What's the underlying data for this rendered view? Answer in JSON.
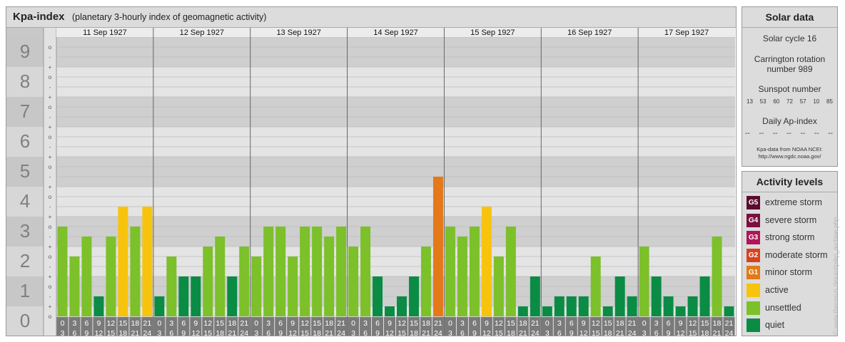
{
  "header": {
    "title": "Kpa-index",
    "subtitle": "(planetary 3-hourly index of geomagnetic activity)"
  },
  "solar": {
    "title": "Solar data",
    "cycle": "Solar cycle 16",
    "carrington_line1": "Carrington rotation",
    "carrington_line2": "number 989",
    "sunspot_label": "Sunspot number",
    "sunspot_values": [
      "13",
      "53",
      "60",
      "72",
      "57",
      "10",
      "85"
    ],
    "ap_label": "Daily Ap-index",
    "ap_values": [
      "--",
      "--",
      "--",
      "--",
      "--",
      "--",
      "--"
    ],
    "source_line1": "Kpa-data from NOAA NCEI:",
    "source_line2": "http://www.ngdc.noaa.gov/"
  },
  "levels": {
    "title": "Activity levels",
    "items": [
      {
        "code": "G5",
        "label": "extreme storm",
        "color": "#5a0a2e"
      },
      {
        "code": "G4",
        "label": "severe storm",
        "color": "#7a1040"
      },
      {
        "code": "G3",
        "label": "strong storm",
        "color": "#b0155a"
      },
      {
        "code": "G2",
        "label": "moderate storm",
        "color": "#d8431f"
      },
      {
        "code": "G1",
        "label": "minor storm",
        "color": "#e37918"
      },
      {
        "code": "",
        "label": "active",
        "color": "#f8c30c"
      },
      {
        "code": "",
        "label": "unsettled",
        "color": "#7cc02a"
      },
      {
        "code": "",
        "label": "quiet",
        "color": "#0a8c45"
      }
    ]
  },
  "watermark": "© www.theusrus.de/unzip/kp_archive.php",
  "chart_data": {
    "type": "bar",
    "title": "Kpa-index",
    "ylim": [
      0,
      9
    ],
    "y_ticks": [
      "0",
      "1",
      "2",
      "3",
      "4",
      "5",
      "6",
      "7",
      "8",
      "9"
    ],
    "sub_ticks": [
      "+",
      "o",
      "-"
    ],
    "days": [
      "11 Sep 1927",
      "12 Sep 1927",
      "13 Sep 1927",
      "14 Sep 1927",
      "15 Sep 1927",
      "16 Sep 1927",
      "17 Sep 1927"
    ],
    "interval_top": [
      "0",
      "3",
      "6",
      "9",
      "12",
      "15",
      "18",
      "21"
    ],
    "interval_bottom": [
      "3",
      "6",
      "9",
      "12",
      "15",
      "18",
      "21",
      "24"
    ],
    "values": [
      3.0,
      2.0,
      2.667,
      0.667,
      2.667,
      3.667,
      3.0,
      3.667,
      0.667,
      2.0,
      1.333,
      1.333,
      2.333,
      2.667,
      1.333,
      2.333,
      2.0,
      3.0,
      3.0,
      2.0,
      3.0,
      3.0,
      2.667,
      3.0,
      2.333,
      3.0,
      1.333,
      0.333,
      0.667,
      1.333,
      2.333,
      4.667,
      3.0,
      2.667,
      3.0,
      3.667,
      2.0,
      3.0,
      0.333,
      1.333,
      0.333,
      0.667,
      0.667,
      0.667,
      2.0,
      0.333,
      1.333,
      0.667,
      2.333,
      1.333,
      0.667,
      0.333,
      0.667,
      1.333,
      2.667,
      0.333
    ],
    "colors": {
      "quiet": "#0a8c45",
      "unsettled": "#7cc02a",
      "active": "#f8c30c",
      "minor_storm": "#e37918"
    }
  }
}
